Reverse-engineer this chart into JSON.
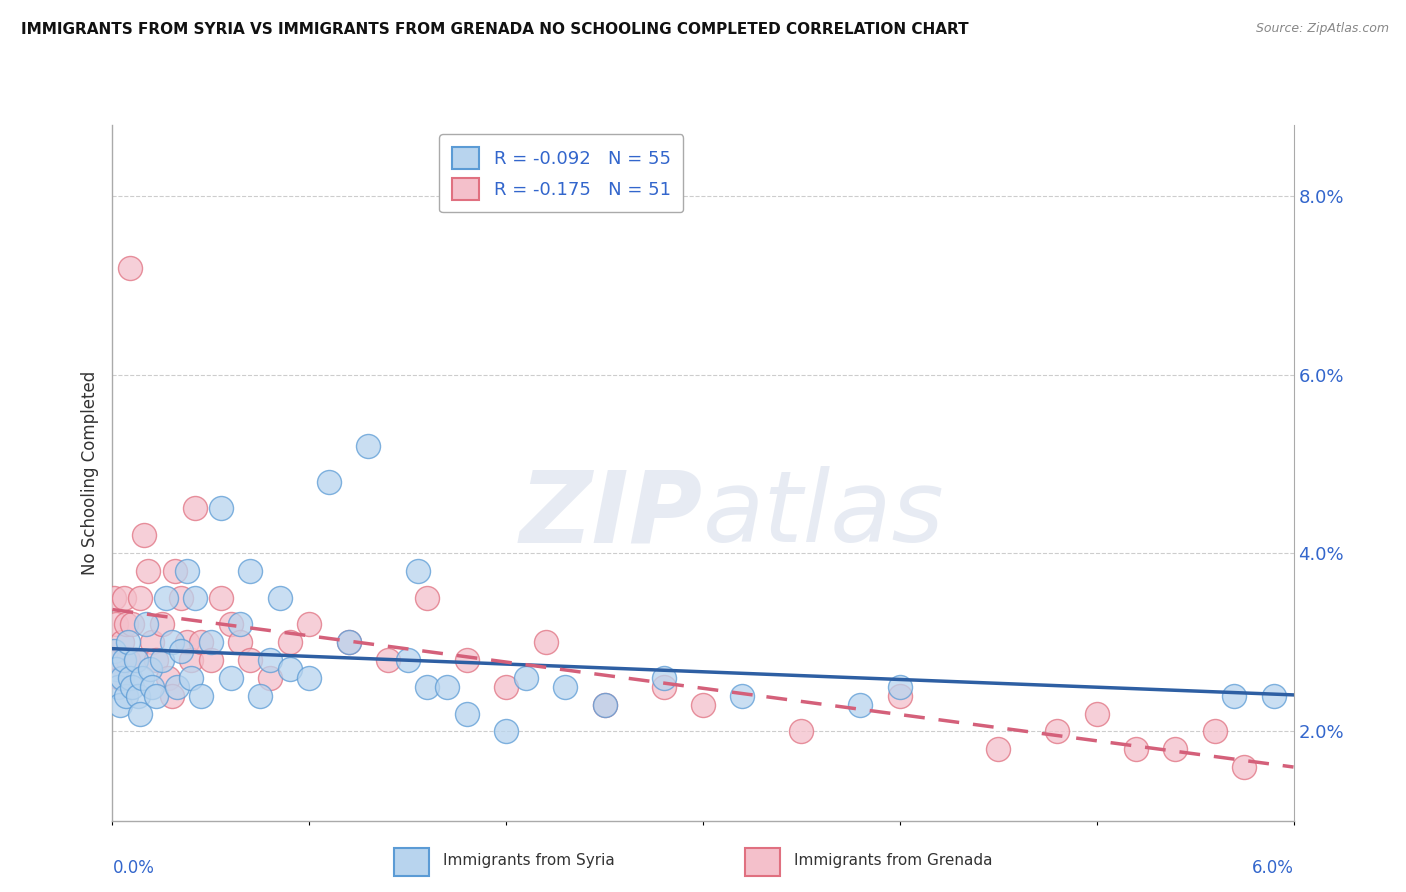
{
  "title": "IMMIGRANTS FROM SYRIA VS IMMIGRANTS FROM GRENADA NO SCHOOLING COMPLETED CORRELATION CHART",
  "source": "Source: ZipAtlas.com",
  "ylabel": "No Schooling Completed",
  "xlim": [
    0.0,
    6.0
  ],
  "ylim": [
    1.0,
    8.8
  ],
  "yticks": [
    2.0,
    4.0,
    6.0,
    8.0
  ],
  "ytick_labels": [
    "2.0%",
    "4.0%",
    "6.0%",
    "8.0%"
  ],
  "series1_label": "Immigrants from Syria",
  "series1_R": "-0.092",
  "series1_N": "55",
  "series1_color": "#b8d4ee",
  "series1_edge_color": "#5b9bd5",
  "series1_line_color": "#2e5fa3",
  "series2_label": "Immigrants from Grenada",
  "series2_R": "-0.175",
  "series2_N": "51",
  "series2_color": "#f4c0cb",
  "series2_edge_color": "#e07080",
  "series2_line_color": "#d4607a",
  "background_color": "#ffffff",
  "grid_color": "#c8c8c8",
  "syria_x": [
    0.01,
    0.02,
    0.03,
    0.04,
    0.05,
    0.06,
    0.07,
    0.08,
    0.09,
    0.1,
    0.12,
    0.13,
    0.14,
    0.15,
    0.17,
    0.19,
    0.2,
    0.22,
    0.25,
    0.27,
    0.3,
    0.33,
    0.35,
    0.38,
    0.4,
    0.42,
    0.45,
    0.5,
    0.55,
    0.6,
    0.65,
    0.7,
    0.75,
    0.8,
    0.85,
    0.9,
    1.0,
    1.1,
    1.2,
    1.3,
    1.5,
    1.55,
    1.6,
    1.7,
    1.8,
    2.0,
    2.1,
    2.3,
    2.5,
    2.8,
    3.2,
    3.8,
    4.0,
    5.7,
    5.9
  ],
  "syria_y": [
    2.9,
    2.7,
    2.5,
    2.3,
    2.6,
    2.8,
    2.4,
    3.0,
    2.6,
    2.5,
    2.8,
    2.4,
    2.2,
    2.6,
    3.2,
    2.7,
    2.5,
    2.4,
    2.8,
    3.5,
    3.0,
    2.5,
    2.9,
    3.8,
    2.6,
    3.5,
    2.4,
    3.0,
    4.5,
    2.6,
    3.2,
    3.8,
    2.4,
    2.8,
    3.5,
    2.7,
    2.6,
    4.8,
    3.0,
    5.2,
    2.8,
    3.8,
    2.5,
    2.5,
    2.2,
    2.0,
    2.6,
    2.5,
    2.3,
    2.6,
    2.4,
    2.3,
    2.5,
    2.4,
    2.4
  ],
  "grenada_x": [
    0.01,
    0.02,
    0.03,
    0.04,
    0.05,
    0.06,
    0.07,
    0.08,
    0.09,
    0.1,
    0.12,
    0.14,
    0.16,
    0.18,
    0.2,
    0.22,
    0.25,
    0.28,
    0.3,
    0.32,
    0.35,
    0.38,
    0.4,
    0.42,
    0.45,
    0.5,
    0.55,
    0.6,
    0.65,
    0.7,
    0.8,
    0.9,
    1.0,
    1.2,
    1.4,
    1.6,
    1.8,
    2.0,
    2.2,
    2.5,
    2.8,
    3.0,
    3.5,
    4.0,
    4.5,
    4.8,
    5.0,
    5.2,
    5.4,
    5.6,
    5.75
  ],
  "grenada_y": [
    3.5,
    3.2,
    2.8,
    2.6,
    3.0,
    3.5,
    3.2,
    2.8,
    7.2,
    3.2,
    2.8,
    3.5,
    4.2,
    3.8,
    3.0,
    2.8,
    3.2,
    2.6,
    2.4,
    3.8,
    3.5,
    3.0,
    2.8,
    4.5,
    3.0,
    2.8,
    3.5,
    3.2,
    3.0,
    2.8,
    2.6,
    3.0,
    3.2,
    3.0,
    2.8,
    3.5,
    2.8,
    2.5,
    3.0,
    2.3,
    2.5,
    2.3,
    2.0,
    2.4,
    1.8,
    2.0,
    2.2,
    1.8,
    1.8,
    2.0,
    1.6
  ]
}
